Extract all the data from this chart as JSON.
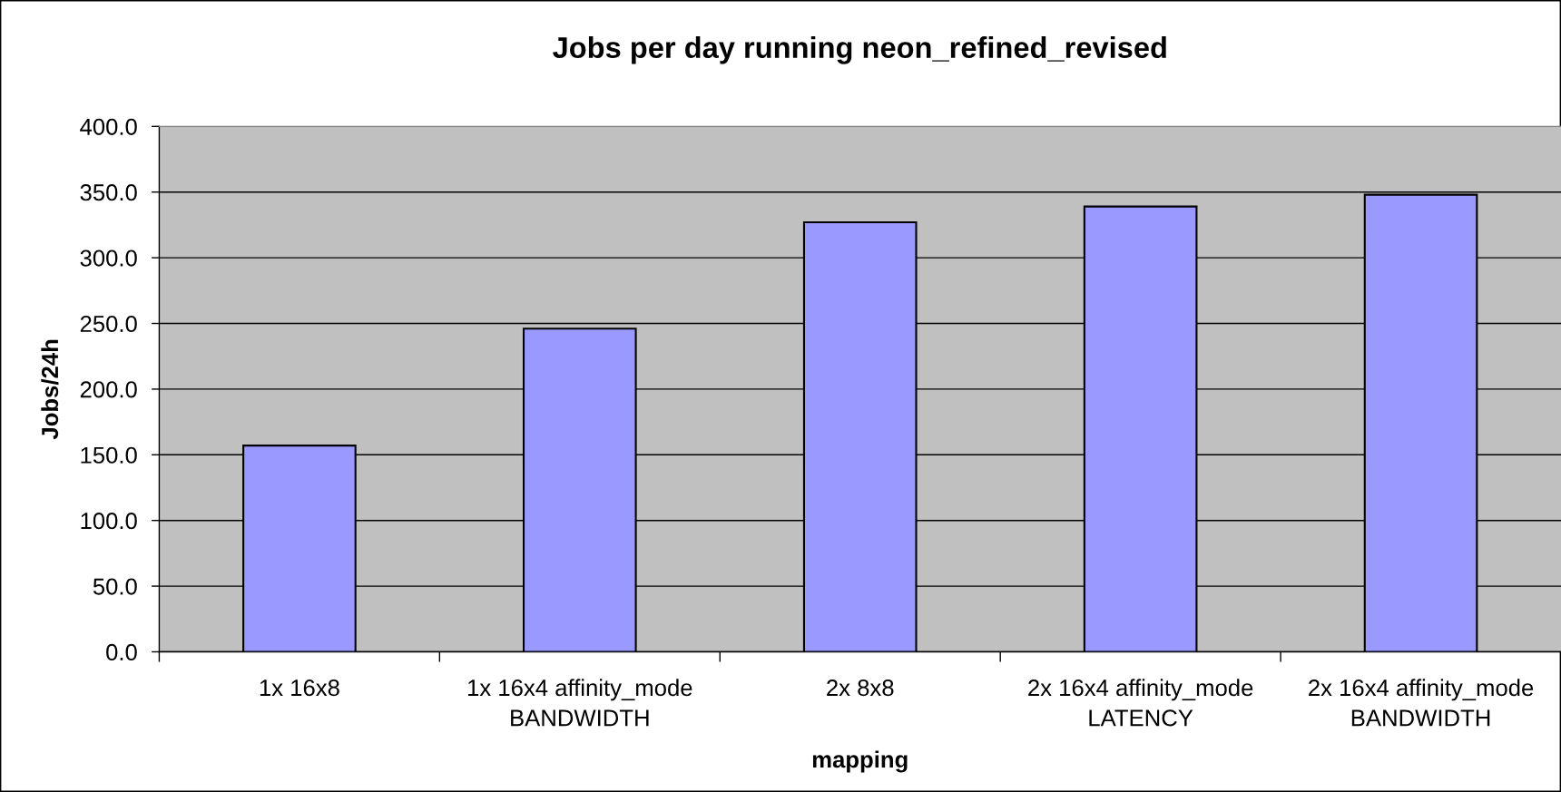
{
  "chart_data": {
    "type": "bar",
    "title": "Jobs per day running neon_refined_revised",
    "xlabel": "mapping",
    "ylabel": "Jobs/24h",
    "categories": [
      "1x 16x8",
      "1x 16x4 affinity_mode\nBANDWIDTH",
      "2x 8x8",
      "2x 16x4 affinity_mode\nLATENCY",
      "2x 16x4 affinity_mode\nBANDWIDTH"
    ],
    "values": [
      157,
      246,
      327,
      339,
      348
    ],
    "color": "#9999ff",
    "ylim": [
      0,
      400
    ],
    "yticks": [
      {
        "value": 0,
        "label": "0.0"
      },
      {
        "value": 50,
        "label": "50.0"
      },
      {
        "value": 100,
        "label": "100.0"
      },
      {
        "value": 150,
        "label": "150.0"
      },
      {
        "value": 200,
        "label": "200.0"
      },
      {
        "value": 250,
        "label": "250.0"
      },
      {
        "value": 300,
        "label": "300.0"
      },
      {
        "value": 350,
        "label": "350.0"
      },
      {
        "value": 400,
        "label": "400.0"
      }
    ],
    "grid": "y"
  }
}
